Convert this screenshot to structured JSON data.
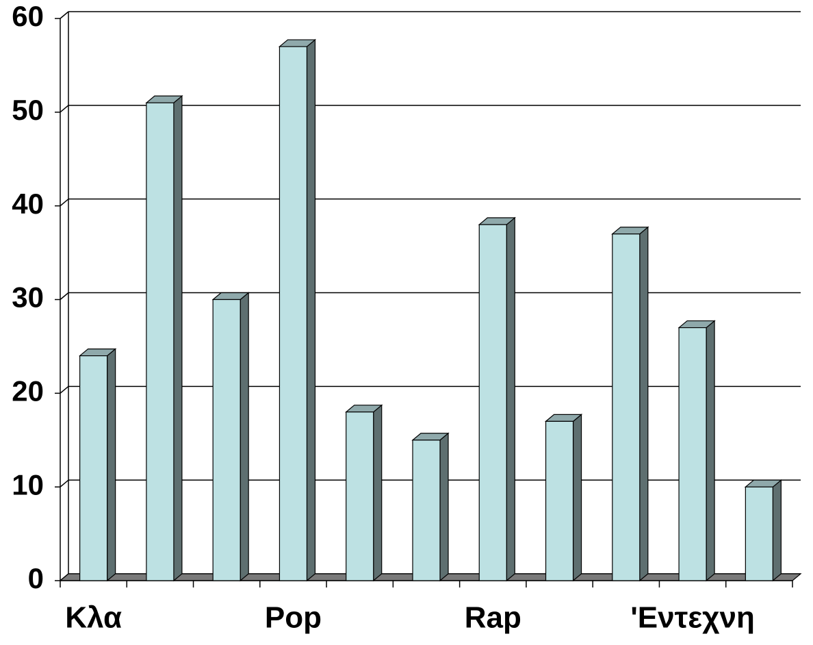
{
  "chart_data": {
    "type": "bar",
    "categories": [
      "Κλα",
      null,
      null,
      "Pop",
      null,
      null,
      "Rap",
      null,
      null,
      "'Εντεχνη",
      null
    ],
    "values": [
      24,
      51,
      30,
      57,
      18,
      15,
      38,
      17,
      37,
      27,
      10
    ],
    "color": "#bde1e3",
    "ylim": [
      0,
      60
    ],
    "yticks": [
      0,
      10,
      20,
      30,
      40,
      50,
      60
    ],
    "grid": true
  }
}
